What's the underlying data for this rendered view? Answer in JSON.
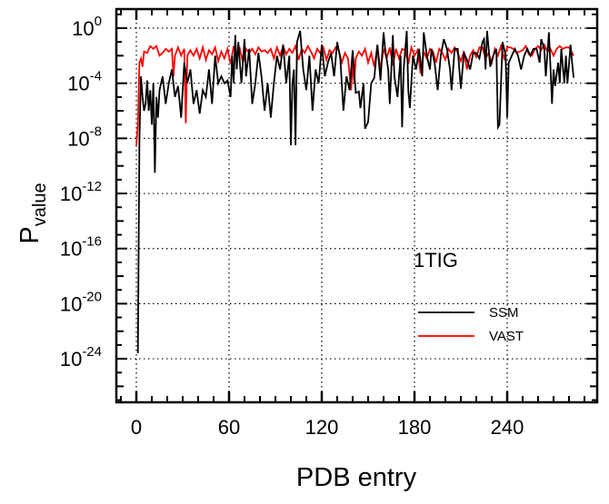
{
  "chart_data": {
    "type": "line",
    "title": "",
    "annotation": "1TIG",
    "xlabel": "PDB entry",
    "ylabel_main": "P",
    "ylabel_sub": "value",
    "yscale": "log10",
    "xlim": [
      -13,
      298
    ],
    "ylim_log10": [
      -27.2,
      1.4
    ],
    "grid": true,
    "legend_placement": "lower-right",
    "x_ticks": [
      0,
      60,
      120,
      180,
      240
    ],
    "x_tick_labels": [
      "0",
      "60",
      "120",
      "180",
      "240"
    ],
    "y_tick_base": "10",
    "y_ticks_log10": [
      0,
      -4,
      -8,
      -12,
      -16,
      -20,
      -24
    ],
    "y_tick_exponents": [
      "0",
      "-4",
      "-8",
      "-12",
      "-16",
      "-20",
      "-24"
    ],
    "series": [
      {
        "name": "SSM",
        "color": "#000000",
        "x": [
          1,
          2,
          3,
          4,
          5,
          6,
          7,
          8,
          9,
          10,
          11,
          12,
          13,
          14,
          15,
          17,
          19,
          21,
          23,
          25,
          27,
          29,
          31,
          33,
          35,
          37,
          39,
          41,
          43,
          45,
          47,
          49,
          51,
          53,
          55,
          57,
          59,
          61,
          62,
          63,
          64,
          65,
          66,
          68,
          70,
          71,
          73,
          75,
          77,
          79,
          81,
          83,
          85,
          87,
          89,
          91,
          93,
          95,
          97,
          99,
          100,
          101,
          102,
          103,
          104,
          106,
          108,
          110,
          112,
          114,
          116,
          118,
          120,
          122,
          124,
          126,
          128,
          130,
          132,
          134,
          136,
          138,
          140,
          142,
          144,
          145,
          147,
          148,
          150,
          152,
          154,
          156,
          157,
          158,
          160,
          161,
          163,
          164,
          166,
          167,
          169,
          171,
          172,
          173,
          175,
          176,
          177,
          179,
          181,
          183,
          185,
          186,
          188,
          190,
          191,
          193,
          195,
          197,
          199,
          201,
          203,
          204,
          206,
          208,
          210,
          212,
          214,
          216,
          218,
          220,
          222,
          224,
          225,
          226,
          227,
          229,
          231,
          233,
          234,
          235,
          236,
          237,
          239,
          240,
          241,
          243,
          245,
          247,
          249,
          251,
          253,
          255,
          257,
          259,
          261,
          262,
          264,
          265,
          267,
          268,
          269,
          270,
          271,
          273,
          274,
          275,
          277,
          278,
          279,
          281,
          282,
          283
        ],
        "log10_values": [
          -23.6,
          -8,
          -3.5,
          -5,
          -6,
          -5.5,
          -3.8,
          -6,
          -4.5,
          -7,
          -4,
          -10.5,
          -5,
          -6.5,
          -4.5,
          -3.5,
          -5.5,
          -4,
          -3,
          -5,
          -4.2,
          -6.5,
          -2.5,
          -4,
          -3,
          -5.5,
          -4.5,
          -6.2,
          -4.5,
          -5,
          -3,
          -5.5,
          -2,
          -4,
          -3.5,
          -4,
          -3.8,
          -5,
          -2,
          -4,
          -0.5,
          -3,
          -1,
          -4,
          -0.8,
          -3.5,
          -1.5,
          -5.5,
          -4,
          -1.8,
          -3.5,
          -6,
          -4,
          -6.5,
          -4,
          -2,
          -3,
          -1.2,
          -4,
          -2,
          -8.5,
          -4,
          -3,
          -8.5,
          -1,
          -0.2,
          -3,
          -4.5,
          -2,
          -6,
          -3,
          -4,
          -1.2,
          -3.5,
          -2.5,
          -1.8,
          -3.5,
          -1,
          -2.2,
          -6,
          -3.5,
          -4.5,
          -1.6,
          -4.7,
          -4.6,
          -5.8,
          -4,
          -7.3,
          -6.8,
          -4,
          -3.6,
          -1.2,
          -2.5,
          -3.8,
          -0.3,
          -1.5,
          -3,
          -5.5,
          -0.5,
          -3.5,
          -5,
          -2,
          -7.2,
          -3,
          -0.2,
          -4.5,
          -5.8,
          -2,
          -3,
          -1.5,
          -3.5,
          -0.3,
          -2,
          -3,
          -1.5,
          -2.5,
          -4.5,
          -2,
          -0.8,
          -1.5,
          -3,
          -4.5,
          -1.5,
          -1.5,
          -4.4,
          -1.8,
          -2.3,
          -3,
          -1.8,
          -1.8,
          -2.2,
          -1,
          -0.8,
          -3,
          -0.2,
          -2.8,
          -2,
          -1.5,
          -7.2,
          -7,
          -4,
          -1,
          -2,
          -6.5,
          -2.5,
          -2,
          -1.5,
          -2,
          -3,
          -2,
          -1.5,
          -2,
          -1.5,
          -1.5,
          -2.5,
          -0.8,
          -1.5,
          -3.5,
          -0.3,
          -2.8,
          -5.5,
          -3,
          -4.2,
          -2.5,
          -4,
          -1.5,
          -4,
          -2,
          -4,
          -1.2,
          -2.5,
          -3.6
        ]
      },
      {
        "name": "VAST",
        "color": "#ff0000",
        "x": [
          0,
          1,
          2,
          3,
          4,
          5,
          7,
          9,
          11,
          13,
          15,
          17,
          19,
          21,
          23,
          24,
          25,
          27,
          29,
          31,
          32,
          33,
          35,
          37,
          39,
          41,
          43,
          45,
          47,
          49,
          51,
          53,
          55,
          57,
          59,
          61,
          63,
          65,
          67,
          69,
          71,
          73,
          75,
          77,
          79,
          81,
          83,
          85,
          87,
          89,
          91,
          93,
          95,
          97,
          99,
          101,
          103,
          105,
          107,
          109,
          111,
          113,
          115,
          117,
          119,
          121,
          123,
          125,
          127,
          129,
          131,
          133,
          135,
          137,
          139,
          140,
          141,
          142,
          144,
          146,
          148,
          150,
          152,
          154,
          156,
          158,
          160,
          162,
          164,
          166,
          168,
          170,
          172,
          174,
          176,
          178,
          180,
          182,
          184,
          186,
          188,
          190,
          192,
          194,
          196,
          198,
          200,
          202,
          204,
          206,
          208,
          210,
          212,
          214,
          216,
          218,
          220,
          222,
          224,
          226,
          228,
          230,
          232,
          234,
          236,
          238,
          240,
          242,
          244,
          246,
          248,
          250,
          252,
          254,
          256,
          258,
          260,
          262,
          264,
          266,
          268,
          270,
          272,
          274,
          276,
          278,
          280,
          283
        ],
        "log10_values": [
          -8.5,
          -7,
          -2.5,
          -2.2,
          -2.8,
          -1.7,
          -1.8,
          -1.3,
          -1.5,
          -1.3,
          -2,
          -1.8,
          -1.5,
          -1.7,
          -1.5,
          -3.5,
          -2,
          -1.4,
          -2,
          -1.5,
          -6.9,
          -2,
          -1.6,
          -2,
          -1.5,
          -2.2,
          -1.4,
          -2.3,
          -1.6,
          -1.9,
          -1.4,
          -2.4,
          -1.7,
          -2.2,
          -1.5,
          -2.6,
          -1.3,
          -2.2,
          -1.5,
          -2.5,
          -1.5,
          -1.8,
          -1.5,
          -1.9,
          -1.4,
          -1.7,
          -1.6,
          -1.8,
          -1.5,
          -2.2,
          -1.4,
          -2,
          -1.3,
          -1.9,
          -1.5,
          -1.8,
          -1.3,
          -2.3,
          -1.5,
          -1.8,
          -1.3,
          -1.7,
          -2.2,
          -1.5,
          -1.8,
          -1.4,
          -2.3,
          -1.6,
          -1.8,
          -1.4,
          -1.6,
          -2.5,
          -1.8,
          -2.2,
          -4.5,
          -2.5,
          -4,
          -2.2,
          -1.7,
          -2,
          -1.5,
          -2.5,
          -1.8,
          -2.8,
          -1.3,
          -3,
          -1.5,
          -2.2,
          -1.4,
          -2.7,
          -1.5,
          -2.2,
          -1.5,
          -1.6,
          -2.6,
          -1.4,
          -2,
          -1.6,
          -3.3,
          -1.7,
          -2.2,
          -1.5,
          -1.7,
          -2.5,
          -1.5,
          -1.8,
          -2.3,
          -1.5,
          -1.8,
          -1.4,
          -1.8,
          -2.4,
          -1.7,
          -3,
          -2,
          -1.6,
          -2.1,
          -1.4,
          -1.4,
          -2.2,
          -1.8,
          -2.5,
          -1.5,
          -2,
          -1.3,
          -2.2,
          -1.4,
          -1.4,
          -1.5,
          -1.8,
          -1.7,
          -1.6,
          -1.3,
          -1.9,
          -2,
          -1.5,
          -1.3,
          -1.6,
          -1.2,
          -1.7,
          -1.5,
          -2,
          -1.5,
          -1.3,
          -1.5,
          -1.4,
          -1.4,
          -2
        ]
      }
    ]
  }
}
